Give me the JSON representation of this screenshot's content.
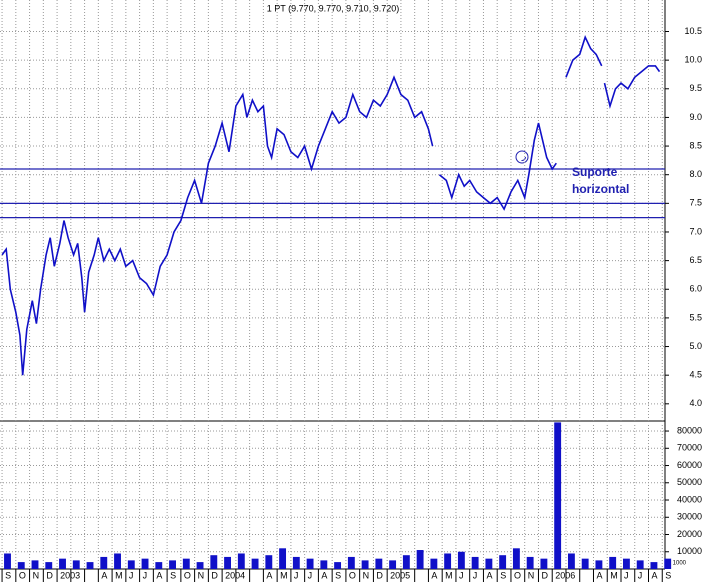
{
  "chart_data": {
    "type": "line",
    "title": "1 PT (9.770, 9.770, 9.710, 9.720)",
    "categories": [
      "S",
      "O",
      "N",
      "D",
      "2003",
      null,
      null,
      "A",
      "M",
      "J",
      "J",
      "A",
      "S",
      "O",
      "N",
      "D",
      "2004",
      null,
      null,
      "A",
      "M",
      "J",
      "J",
      "A",
      "S",
      "O",
      "N",
      "D",
      "2005",
      null,
      null,
      "A",
      "M",
      "J",
      "J",
      "A",
      "S",
      "O",
      "N",
      "D",
      "2006",
      null,
      null,
      "A",
      "M",
      "J",
      "J",
      "A",
      "S"
    ],
    "xlim": [
      -0.15,
      48.2
    ],
    "ylim": [
      3.7,
      11.05
    ],
    "yticks": [
      {
        "value": 4,
        "label": "4.0"
      },
      4.5,
      {
        "value": 5,
        "label": "5.0"
      },
      5.5,
      {
        "value": 6,
        "label": "6.0"
      },
      6.5,
      {
        "value": 7,
        "label": "7.0"
      },
      7.5,
      {
        "value": 8,
        "label": "8.0"
      },
      8.5,
      {
        "value": 9,
        "label": "9.0"
      },
      9.5,
      {
        "value": 10,
        "label": "10.0"
      },
      10.5
    ],
    "grid": true,
    "x": [
      0,
      0.3,
      0.6,
      1.0,
      1.3,
      1.5,
      1.8,
      2.2,
      2.5,
      2.8,
      3.2,
      3.5,
      3.8,
      4.2,
      4.5,
      4.8,
      5.2,
      5.5,
      5.8,
      6.0,
      6.3,
      6.7,
      7.0,
      7.4,
      7.8,
      8.2,
      8.6,
      9.0,
      9.5,
      10,
      10.5,
      11,
      11.5,
      12,
      12.5,
      13,
      13.5,
      14,
      14.5,
      15,
      15.5,
      16,
      16.5,
      17,
      17.5,
      17.8,
      18.2,
      18.6,
      19.0,
      19.3,
      19.6,
      20,
      20.5,
      21,
      21.5,
      22,
      22.5,
      23,
      23.5,
      24,
      24.5,
      25,
      25.5,
      26,
      26.5,
      27,
      27.5,
      28,
      28.5,
      29,
      29.5,
      30,
      30.5,
      31,
      31.3,
      31.5,
      31.8,
      32.3,
      32.7,
      33.2,
      33.6,
      34.0,
      34.5,
      35,
      35.5,
      36,
      36.5,
      37,
      37.5,
      38,
      38.3,
      38.7,
      39,
      39.3,
      39.6,
      40,
      40.3,
      40.6,
      41,
      41.5,
      42,
      42.4,
      42.8,
      43.2,
      43.6,
      43.7,
      43.8,
      44.2,
      44.6,
      45,
      45.5,
      46,
      46.5,
      47,
      47.5,
      47.8
    ],
    "series": [
      {
        "color": "#1010c8",
        "values": [
          6.6,
          6.7,
          6.0,
          5.6,
          5.2,
          4.5,
          5.3,
          5.8,
          5.4,
          6.0,
          6.6,
          6.9,
          6.4,
          6.8,
          7.2,
          6.9,
          6.6,
          6.8,
          6.2,
          5.6,
          6.3,
          6.6,
          6.9,
          6.5,
          6.7,
          6.5,
          6.7,
          6.4,
          6.5,
          6.2,
          6.1,
          5.9,
          6.4,
          6.6,
          7.0,
          7.2,
          7.6,
          7.9,
          7.5,
          8.2,
          8.5,
          8.9,
          8.4,
          9.2,
          9.4,
          9.0,
          9.3,
          9.1,
          9.2,
          8.5,
          8.3,
          8.8,
          8.7,
          8.4,
          8.3,
          8.5,
          8.1,
          8.5,
          8.8,
          9.1,
          8.9,
          9.0,
          9.4,
          9.1,
          9.0,
          9.3,
          9.2,
          9.4,
          9.7,
          9.4,
          9.3,
          9.0,
          9.1,
          8.8,
          8.5,
          null,
          8.0,
          7.9,
          7.6,
          8.0,
          7.8,
          7.9,
          7.7,
          7.6,
          7.5,
          7.6,
          7.4,
          7.7,
          7.9,
          7.6,
          8.0,
          8.6,
          8.9,
          8.6,
          8.3,
          8.1,
          8.2,
          null,
          9.7,
          10.0,
          10.1,
          10.4,
          10.2,
          10.1,
          9.9,
          null,
          9.6,
          9.2,
          9.5,
          9.6,
          9.5,
          9.7,
          9.8,
          9.9,
          9.9,
          9.8
        ]
      }
    ],
    "support_lines": [
      8.1,
      7.5,
      7.25
    ],
    "support_color": "#2020b0",
    "annotation": [
      "Suporte",
      "horizontal"
    ],
    "volume": {
      "color": "#1010c8",
      "ylim": [
        0,
        83500
      ],
      "yticks": [
        10000,
        20000,
        30000,
        40000,
        50000,
        60000,
        70000,
        80000
      ],
      "unit_label": "x 1000",
      "values": [
        9000,
        4000,
        5000,
        4000,
        6000,
        5000,
        4000,
        7000,
        9000,
        5000,
        6000,
        4000,
        5000,
        6000,
        4000,
        8000,
        7000,
        9000,
        6000,
        8000,
        12000,
        7000,
        6000,
        5000,
        4000,
        7000,
        5000,
        6000,
        5000,
        8000,
        11000,
        6000,
        9000,
        10000,
        7000,
        6000,
        8000,
        12000,
        7000,
        6000,
        85000,
        9000,
        6000,
        5000,
        7000,
        6000,
        5000,
        4000,
        6000
      ]
    }
  }
}
